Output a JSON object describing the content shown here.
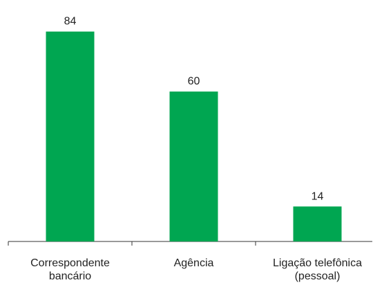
{
  "chart_data": {
    "type": "bar",
    "categories": [
      [
        "Correspondente",
        "bancário"
      ],
      [
        "Agência"
      ],
      [
        "Ligação telefônica",
        "(pessoal)"
      ]
    ],
    "values": [
      84,
      60,
      14
    ],
    "color": "#00a651",
    "ylim": [
      0,
      90
    ]
  }
}
